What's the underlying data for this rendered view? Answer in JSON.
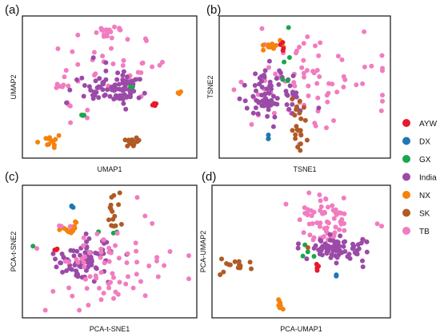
{
  "colors": {
    "AYW": "#e8192c",
    "DX": "#1f77b4",
    "GX": "#1aa64a",
    "India": "#9b4aa8",
    "NX": "#f5820d",
    "SK": "#b05a26",
    "TB": "#f17cc0"
  },
  "legend": [
    "AYW",
    "DX",
    "GX",
    "India",
    "NX",
    "SK",
    "TB"
  ],
  "chart_data": [
    {
      "type": "scatter",
      "panel_label": "(a)",
      "xlabel": "UMAP1",
      "ylabel": "UMAP2",
      "xlim": [
        0,
        100
      ],
      "ylim": [
        0,
        100
      ],
      "grid": false,
      "clusters": [
        {
          "group": "TB",
          "cx": 49,
          "cy": 93,
          "sx": 5,
          "sy": 2.5,
          "n": 18,
          "seed": 1
        },
        {
          "group": "TB",
          "cx": 48,
          "cy": 64,
          "sx": 18,
          "sy": 12,
          "n": 38,
          "seed": 2
        },
        {
          "group": "TB",
          "cx": 20,
          "cy": 51,
          "sx": 3,
          "sy": 1,
          "n": 5,
          "seed": 3
        },
        {
          "group": "TB",
          "cx": 25,
          "cy": 36,
          "sx": 2,
          "sy": 5,
          "n": 4,
          "seed": 4
        },
        {
          "group": "India",
          "cx": 52,
          "cy": 50,
          "sx": 11,
          "sy": 7,
          "n": 85,
          "seed": 5
        },
        {
          "group": "GX",
          "cx": 64,
          "cy": 49,
          "sx": 1,
          "sy": 1,
          "n": 2,
          "seed": 6
        },
        {
          "group": "GX",
          "cx": 33,
          "cy": 28,
          "sx": 1.2,
          "sy": 0.5,
          "n": 3,
          "seed": 7
        },
        {
          "group": "AYW",
          "cx": 78,
          "cy": 37,
          "sx": 0.7,
          "sy": 1.2,
          "n": 5,
          "seed": 8
        },
        {
          "group": "NX",
          "cx": 93,
          "cy": 46,
          "sx": 0.8,
          "sy": 1,
          "n": 3,
          "seed": 9
        },
        {
          "group": "NX",
          "cx": 13,
          "cy": 8,
          "sx": 3,
          "sy": 3,
          "n": 12,
          "seed": 10
        },
        {
          "group": "SK",
          "cx": 65,
          "cy": 8,
          "sx": 3.5,
          "sy": 2.5,
          "n": 15,
          "seed": 11
        }
      ]
    },
    {
      "type": "scatter",
      "panel_label": "(b)",
      "xlabel": "TSNE1",
      "ylabel": "TSNE2",
      "xlim": [
        0,
        100
      ],
      "ylim": [
        0,
        100
      ],
      "grid": false,
      "clusters": [
        {
          "group": "TB",
          "cx": 52,
          "cy": 56,
          "sx": 25,
          "sy": 18,
          "n": 75,
          "seed": 21
        },
        {
          "group": "India",
          "cx": 30,
          "cy": 46,
          "sx": 9,
          "sy": 11,
          "n": 75,
          "seed": 22
        },
        {
          "group": "NX",
          "cx": 28,
          "cy": 81,
          "sx": 3,
          "sy": 2,
          "n": 12,
          "seed": 23
        },
        {
          "group": "AYW",
          "cx": 36,
          "cy": 81,
          "sx": 0.7,
          "sy": 2,
          "n": 4,
          "seed": 24
        },
        {
          "group": "GX",
          "cx": 40,
          "cy": 96,
          "sx": 0.5,
          "sy": 0.5,
          "n": 1,
          "seed": 25
        },
        {
          "group": "GX",
          "cx": 38,
          "cy": 62,
          "sx": 3,
          "sy": 5,
          "n": 4,
          "seed": 26
        },
        {
          "group": "DX",
          "cx": 27,
          "cy": 10,
          "sx": 0.5,
          "sy": 1.5,
          "n": 3,
          "seed": 27
        },
        {
          "group": "SK",
          "cx": 46,
          "cy": 22,
          "sx": 3,
          "sy": 12,
          "n": 22,
          "seed": 28
        }
      ]
    },
    {
      "type": "scatter",
      "panel_label": "(c)",
      "xlabel": "PCA-t-SNE1",
      "ylabel": "PCA-t-SNE2",
      "xlim": [
        0,
        100
      ],
      "ylim": [
        0,
        100
      ],
      "grid": false,
      "clusters": [
        {
          "group": "DX",
          "cx": 27,
          "cy": 87,
          "sx": 0.4,
          "sy": 1.2,
          "n": 3,
          "seed": 31
        },
        {
          "group": "SK",
          "cx": 54,
          "cy": 83,
          "sx": 2.5,
          "sy": 7,
          "n": 15,
          "seed": 32
        },
        {
          "group": "NX",
          "cx": 28,
          "cy": 70,
          "sx": 3,
          "sy": 3,
          "n": 14,
          "seed": 33
        },
        {
          "group": "GX",
          "cx": 46,
          "cy": 66,
          "sx": 4,
          "sy": 2,
          "n": 3,
          "seed": 34
        },
        {
          "group": "GX",
          "cx": 2,
          "cy": 55,
          "sx": 0.4,
          "sy": 0.4,
          "n": 1,
          "seed": 35
        },
        {
          "group": "AYW",
          "cx": 17,
          "cy": 52,
          "sx": 0.8,
          "sy": 0.8,
          "n": 4,
          "seed": 36
        },
        {
          "group": "India",
          "cx": 33,
          "cy": 42,
          "sx": 8,
          "sy": 9,
          "n": 75,
          "seed": 37
        },
        {
          "group": "TB",
          "cx": 50,
          "cy": 40,
          "sx": 22,
          "sy": 20,
          "n": 75,
          "seed": 38
        }
      ]
    },
    {
      "type": "scatter",
      "panel_label": "(d)",
      "xlabel": "PCA-UMAP1",
      "ylabel": "PCA-UMAP2",
      "xlim": [
        0,
        100
      ],
      "ylim": [
        0,
        100
      ],
      "grid": false,
      "clusters": [
        {
          "group": "TB",
          "cx": 64,
          "cy": 78,
          "sx": 9,
          "sy": 9,
          "n": 65,
          "seed": 41
        },
        {
          "group": "TB",
          "cx": 97,
          "cy": 72,
          "sx": 1,
          "sy": 1,
          "n": 2,
          "seed": 42
        },
        {
          "group": "India",
          "cx": 72,
          "cy": 53,
          "sx": 8,
          "sy": 5,
          "n": 75,
          "seed": 43
        },
        {
          "group": "GX",
          "cx": 56,
          "cy": 50,
          "sx": 3,
          "sy": 6,
          "n": 4,
          "seed": 44
        },
        {
          "group": "SK",
          "cx": 13,
          "cy": 38,
          "sx": 6,
          "sy": 3,
          "n": 14,
          "seed": 45
        },
        {
          "group": "SK",
          "cx": 54,
          "cy": 53,
          "sx": 0.5,
          "sy": 0.5,
          "n": 1,
          "seed": 46
        },
        {
          "group": "AYW",
          "cx": 60,
          "cy": 37,
          "sx": 0.7,
          "sy": 1.2,
          "n": 4,
          "seed": 47
        },
        {
          "group": "DX",
          "cx": 71,
          "cy": 30,
          "sx": 0.5,
          "sy": 1,
          "n": 3,
          "seed": 48
        },
        {
          "group": "NX",
          "cx": 37,
          "cy": 6,
          "sx": 1,
          "sy": 2,
          "n": 10,
          "seed": 49
        }
      ]
    }
  ]
}
